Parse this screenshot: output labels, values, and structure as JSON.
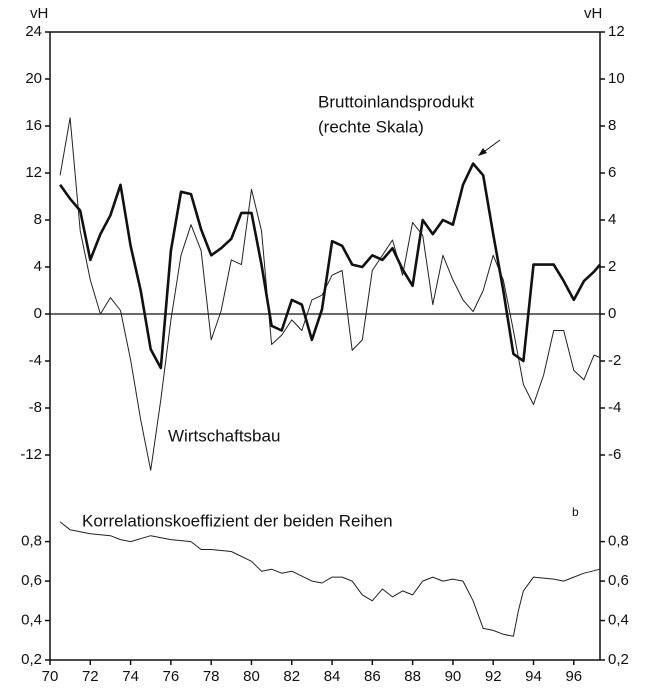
{
  "chart_data": [
    {
      "type": "line",
      "y_unit_label": "vH",
      "y2_unit_label": "vH",
      "annotations": [
        "Bruttoinlandsprodukt",
        "(rechte Skala)",
        "Wirtschaftsbau"
      ],
      "x": [
        70.5,
        71,
        71.5,
        72,
        72.5,
        73,
        73.5,
        74,
        74.5,
        75,
        75.5,
        76,
        76.5,
        77,
        77.5,
        78,
        78.5,
        79,
        79.5,
        80,
        80.5,
        81,
        81.5,
        82,
        82.5,
        83,
        83.5,
        84,
        84.5,
        85,
        85.5,
        86,
        86.5,
        87,
        87.5,
        88,
        88.5,
        89,
        89.5,
        90,
        90.5,
        91,
        91.5,
        92,
        92.5,
        93,
        93.5,
        94,
        94.5,
        95,
        95.5,
        96,
        96.5,
        97,
        97.3
      ],
      "xlim": [
        70,
        97.3
      ],
      "ylim": [
        -16,
        24
      ],
      "yticks": [
        -12,
        -8,
        -4,
        0,
        4,
        8,
        12,
        16,
        20,
        24
      ],
      "y2lim": [
        -8,
        12
      ],
      "y2ticks": [
        -6,
        -4,
        -2,
        0,
        2,
        4,
        6,
        8,
        10,
        12
      ],
      "series": [
        {
          "name": "Wirtschaftsbau",
          "color": "#222",
          "width": 1,
          "values": [
            11.8,
            16.7,
            7.1,
            2.9,
            0,
            1.4,
            0.3,
            -3.9,
            -9.0,
            -13.3,
            -7.3,
            -0.5,
            5.0,
            7.6,
            5.4,
            -2.2,
            0.3,
            4.6,
            4.2,
            10.6,
            7.1,
            -2.6,
            -1.8,
            -0.5,
            -1.4,
            1.2,
            1.6,
            3.3,
            3.7,
            -3.1,
            -2.2,
            3.7,
            5.0,
            6.3,
            3.3,
            7.8,
            6.7,
            0.8,
            5.0,
            2.9,
            1.2,
            0.2,
            2.0,
            5.0,
            2.9,
            -1.4,
            -6.0,
            -7.7,
            -5.2,
            -1.4,
            -1.4,
            -4.8,
            -5.6,
            -3.5,
            -3.7
          ]
        },
        {
          "name": "Bruttoinlandsprodukt",
          "color": "#111",
          "width": 2.6,
          "axis": "y2",
          "values": [
            5.5,
            4.9,
            4.4,
            2.3,
            3.4,
            4.2,
            5.5,
            2.9,
            1.0,
            -1.5,
            -2.3,
            2.7,
            5.2,
            5.1,
            3.6,
            2.5,
            2.8,
            3.2,
            4.3,
            4.3,
            2.1,
            -0.5,
            -0.7,
            0.6,
            0.4,
            -1.1,
            0.2,
            3.1,
            2.9,
            2.1,
            2.0,
            2.5,
            2.3,
            2.8,
            1.9,
            1.2,
            4.0,
            3.4,
            4.0,
            3.8,
            5.5,
            6.4,
            5.9,
            3.4,
            1.0,
            -1.7,
            -2.0,
            2.1,
            2.1,
            2.1,
            1.4,
            0.6,
            1.4,
            1.8,
            2.1
          ]
        }
      ]
    },
    {
      "type": "line",
      "annotations": [
        "Korrelationskoeffizient der beiden Reihen",
        "b"
      ],
      "x": [
        70.5,
        71,
        72,
        73,
        73.5,
        74,
        75,
        76,
        77,
        77.5,
        78,
        79,
        80,
        80.5,
        81,
        81.5,
        82,
        83,
        83.5,
        84,
        84.5,
        85,
        85.5,
        86,
        86.5,
        87,
        87.5,
        88,
        88.5,
        89,
        89.5,
        90,
        90.5,
        91,
        91.5,
        92,
        92.5,
        93,
        93.25,
        93.5,
        94,
        95,
        95.5,
        96,
        96.5,
        97.3
      ],
      "xlim": [
        70,
        97.3
      ],
      "xticks": [
        70,
        72,
        74,
        76,
        78,
        80,
        82,
        84,
        86,
        88,
        90,
        92,
        94,
        96
      ],
      "ylim": [
        0.2,
        0.95
      ],
      "yticks": [
        {
          "value": 0.2,
          "label": "0,2"
        },
        {
          "value": 0.4,
          "label": "0,4"
        },
        {
          "value": 0.6,
          "label": "0,6"
        },
        {
          "value": 0.8,
          "label": "0,8"
        }
      ],
      "y2ticks": [
        {
          "value": 0.2,
          "label": "0,2"
        },
        {
          "value": 0.4,
          "label": "0,4"
        },
        {
          "value": 0.6,
          "label": "0,6"
        },
        {
          "value": 0.8,
          "label": "0,8"
        }
      ],
      "series": [
        {
          "name": "Korrelationskoeffizient",
          "color": "#222",
          "width": 1,
          "values": [
            0.9,
            0.86,
            0.84,
            0.83,
            0.81,
            0.8,
            0.83,
            0.81,
            0.8,
            0.76,
            0.76,
            0.75,
            0.7,
            0.65,
            0.66,
            0.64,
            0.65,
            0.6,
            0.59,
            0.62,
            0.62,
            0.6,
            0.53,
            0.5,
            0.56,
            0.52,
            0.55,
            0.53,
            0.6,
            0.62,
            0.6,
            0.61,
            0.6,
            0.5,
            0.36,
            0.35,
            0.33,
            0.32,
            0.45,
            0.55,
            0.62,
            0.61,
            0.6,
            0.62,
            0.64,
            0.66
          ]
        }
      ]
    }
  ]
}
